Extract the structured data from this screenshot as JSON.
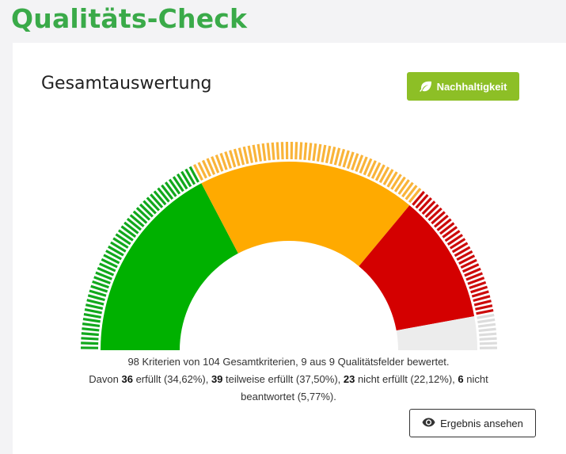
{
  "page": {
    "title": "Qualitäts-Check"
  },
  "card": {
    "title": "Gesamtauswertung",
    "sustainability_button": {
      "label": "Nachhaltigkeit",
      "icon": "leaf-icon"
    },
    "result_button": {
      "label": "Ergebnis ansehen",
      "icon": "eye-icon"
    }
  },
  "summary": {
    "line1": "98 Kriterien von 104 Gesamtkriterien, 9 aus 9 Qualitätsfelder bewertet.",
    "prefix": "Davon ",
    "fulfilled_count": "36",
    "fulfilled_text": " erfüllt (34,62%), ",
    "partial_count": "39",
    "partial_text": " teilweise erfüllt (37,50%), ",
    "not_fulfilled_count": "23",
    "not_fulfilled_text": " nicht erfüllt (22,12%), ",
    "unanswered_count": "6",
    "unanswered_text": " nicht beantwortet (5,77%)."
  },
  "chart_data": {
    "type": "gauge",
    "segments": [
      {
        "label": "erfüllt",
        "value": 36,
        "percent": 34.62,
        "color": "#00b100",
        "stripe_color": "#11a81c"
      },
      {
        "label": "teilweise erfüllt",
        "value": 39,
        "percent": 37.5,
        "color": "#ffaa00",
        "stripe_color": "#f9b43a"
      },
      {
        "label": "nicht erfüllt",
        "value": 23,
        "percent": 22.12,
        "color": "#d40000",
        "stripe_color": "#cc0a0a"
      },
      {
        "label": "nicht beantwortet",
        "value": 6,
        "percent": 5.77,
        "color": "#ececec",
        "stripe_color": "#dcdcdc"
      }
    ]
  }
}
